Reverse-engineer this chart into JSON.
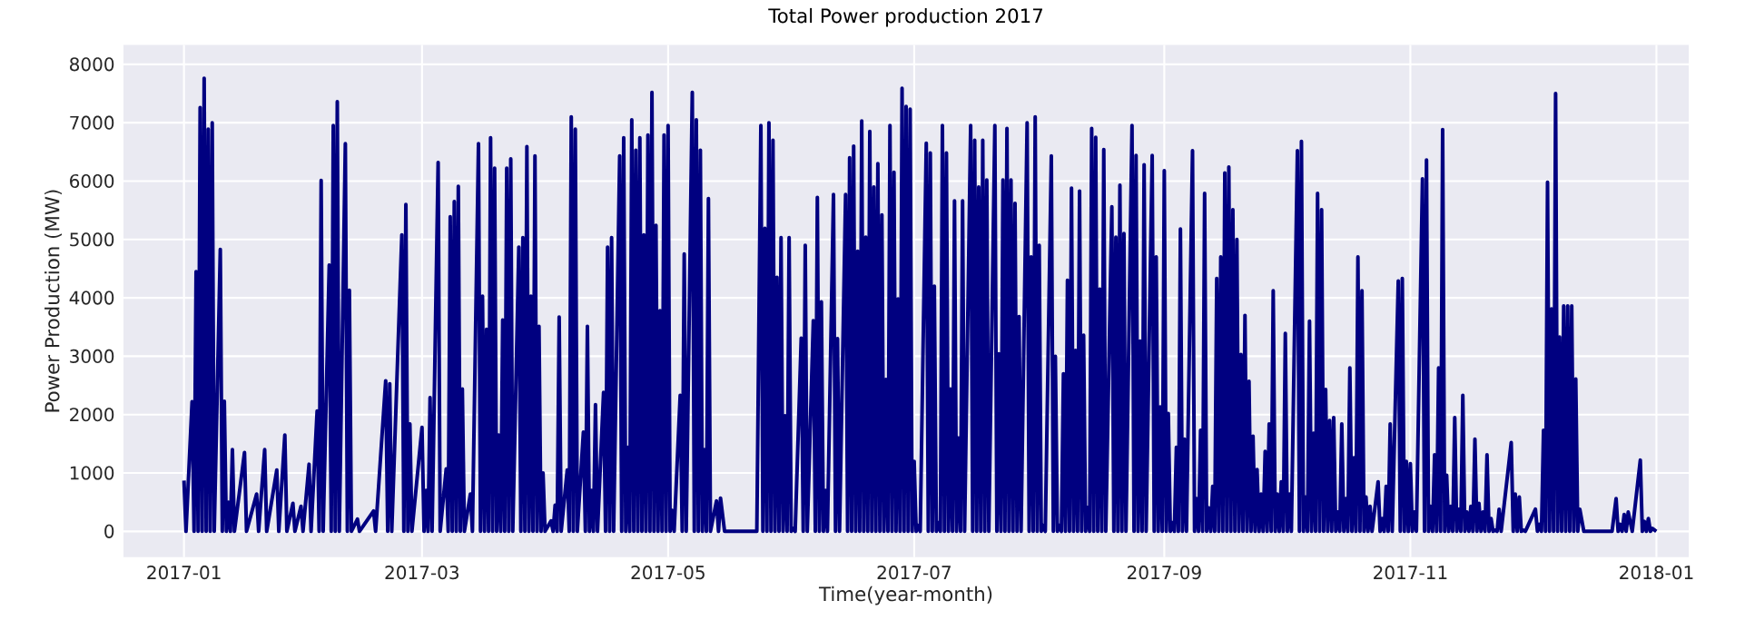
{
  "chart_data": {
    "type": "line",
    "title": "Total Power production 2017",
    "xlabel": "Time(year-month)",
    "ylabel": "Power Production (MW)",
    "grid": true,
    "xlim": [
      "2016-12-17",
      "2018-01-09"
    ],
    "ylim": [
      -440,
      8330
    ],
    "xticks": [
      {
        "value": "2017-01",
        "label": "2017-01"
      },
      {
        "value": "2017-03",
        "label": "2017-03"
      },
      {
        "value": "2017-05",
        "label": "2017-05"
      },
      {
        "value": "2017-07",
        "label": "2017-07"
      },
      {
        "value": "2017-09",
        "label": "2017-09"
      },
      {
        "value": "2017-11",
        "label": "2017-11"
      },
      {
        "value": "2018-01",
        "label": "2018-01"
      }
    ],
    "yticks": [
      0,
      1000,
      2000,
      3000,
      4000,
      5000,
      6000,
      7000,
      8000
    ],
    "series": [
      {
        "color": "#000080",
        "x": [
          "2017-01-01",
          "2017-01-01T12:00",
          "2017-01-03",
          "2017-01-03T12:00",
          "2017-01-04",
          "2017-01-04T12:00",
          "2017-01-05",
          "2017-01-05T12:00",
          "2017-01-06",
          "2017-01-06T12:00",
          "2017-01-07",
          "2017-01-07T12:00",
          "2017-01-08",
          "2017-01-08T12:00",
          "2017-01-10",
          "2017-01-10T12:00",
          "2017-01-11",
          "2017-01-11T12:00",
          "2017-01-12",
          "2017-01-12T12:00",
          "2017-01-13",
          "2017-01-13T12:00",
          "2017-01-16",
          "2017-01-16T12:00",
          "2017-01-19",
          "2017-01-19T12:00",
          "2017-01-21",
          "2017-01-21T12:00",
          "2017-01-24",
          "2017-01-24T12:00",
          "2017-01-26",
          "2017-01-26T12:00",
          "2017-01-28",
          "2017-01-28T12:00",
          "2017-01-30",
          "2017-01-30T12:00",
          "2017-02-01",
          "2017-02-01T12:00",
          "2017-02-03",
          "2017-02-03T12:00",
          "2017-02-04",
          "2017-02-04T12:00",
          "2017-02-06",
          "2017-02-06T12:00",
          "2017-02-07",
          "2017-02-07T12:00",
          "2017-02-08",
          "2017-02-08T12:00",
          "2017-02-10",
          "2017-02-10T12:00",
          "2017-02-11",
          "2017-02-11T12:00",
          "2017-02-13",
          "2017-02-13T12:00",
          "2017-02-17",
          "2017-02-17T12:00",
          "2017-02-20",
          "2017-02-20T12:00",
          "2017-02-21",
          "2017-02-21T12:00",
          "2017-02-24",
          "2017-02-24T12:00",
          "2017-02-25",
          "2017-02-25T12:00",
          "2017-02-26",
          "2017-02-26T12:00",
          "2017-03-01",
          "2017-03-01T12:00",
          "2017-03-02",
          "2017-03-02T12:00",
          "2017-03-03",
          "2017-03-03T12:00",
          "2017-03-05",
          "2017-03-05T12:00",
          "2017-03-07",
          "2017-03-07T12:00",
          "2017-03-08",
          "2017-03-08T12:00",
          "2017-03-09",
          "2017-03-09T12:00",
          "2017-03-10",
          "2017-03-10T12:00",
          "2017-03-11",
          "2017-03-11T12:00",
          "2017-03-13",
          "2017-03-13T12:00",
          "2017-03-15",
          "2017-03-15T12:00",
          "2017-03-16",
          "2017-03-16T12:00",
          "2017-03-17",
          "2017-03-17T12:00",
          "2017-03-18",
          "2017-03-18T12:00",
          "2017-03-19",
          "2017-03-19T12:00",
          "2017-03-20",
          "2017-03-20T12:00",
          "2017-03-21",
          "2017-03-21T12:00",
          "2017-03-22",
          "2017-03-22T12:00",
          "2017-03-23",
          "2017-03-23T12:00",
          "2017-03-25",
          "2017-03-25T12:00",
          "2017-03-26",
          "2017-03-26T12:00",
          "2017-03-27",
          "2017-03-27T12:00",
          "2017-03-28",
          "2017-03-28T12:00",
          "2017-03-29",
          "2017-03-29T12:00",
          "2017-03-30",
          "2017-03-30T12:00",
          "2017-03-31",
          "2017-03-31T12:00",
          "2017-04-02",
          "2017-04-02T12:00",
          "2017-04-03",
          "2017-04-03T12:00",
          "2017-04-04",
          "2017-04-04T12:00",
          "2017-04-06",
          "2017-04-06T12:00",
          "2017-04-07",
          "2017-04-07T12:00",
          "2017-04-08",
          "2017-04-08T12:00",
          "2017-04-10",
          "2017-04-10T12:00",
          "2017-04-11",
          "2017-04-11T12:00",
          "2017-04-12",
          "2017-04-12T12:00",
          "2017-04-13",
          "2017-04-13T12:00",
          "2017-04-15",
          "2017-04-15T12:00",
          "2017-04-16",
          "2017-04-16T12:00",
          "2017-04-17",
          "2017-04-17T12:00",
          "2017-04-19",
          "2017-04-19T12:00",
          "2017-04-20",
          "2017-04-20T12:00",
          "2017-04-21",
          "2017-04-21T12:00",
          "2017-04-22",
          "2017-04-22T12:00",
          "2017-04-23",
          "2017-04-23T12:00",
          "2017-04-24",
          "2017-04-24T12:00",
          "2017-04-25",
          "2017-04-25T12:00",
          "2017-04-26",
          "2017-04-26T12:00",
          "2017-04-27",
          "2017-04-27T12:00",
          "2017-04-28",
          "2017-04-28T12:00",
          "2017-04-29",
          "2017-04-29T12:00",
          "2017-04-30",
          "2017-04-30T12:00",
          "2017-05-01",
          "2017-05-01T12:00",
          "2017-05-02",
          "2017-05-02T12:00",
          "2017-05-04",
          "2017-05-04T12:00",
          "2017-05-05",
          "2017-05-05T12:00",
          "2017-05-07",
          "2017-05-07T12:00",
          "2017-05-08",
          "2017-05-08T12:00",
          "2017-05-09",
          "2017-05-09T12:00",
          "2017-05-10",
          "2017-05-10T12:00",
          "2017-05-11",
          "2017-05-11T12:00",
          "2017-05-13",
          "2017-05-13T12:00",
          "2017-05-14",
          "2017-05-15",
          "2017-05-23",
          "2017-05-24",
          "2017-05-24T12:00",
          "2017-05-25",
          "2017-05-25T12:00",
          "2017-05-26",
          "2017-05-26T12:00",
          "2017-05-27",
          "2017-05-27T12:00",
          "2017-05-28",
          "2017-05-28T12:00",
          "2017-05-29",
          "2017-05-29T12:00",
          "2017-05-30",
          "2017-05-30T12:00",
          "2017-05-31",
          "2017-05-31T12:00",
          "2017-06-01",
          "2017-06-01T12:00",
          "2017-06-03",
          "2017-06-03T12:00",
          "2017-06-04",
          "2017-06-04T12:00",
          "2017-06-06",
          "2017-06-06T12:00",
          "2017-06-07",
          "2017-06-07T12:00",
          "2017-06-08",
          "2017-06-08T12:00",
          "2017-06-09",
          "2017-06-09T12:00",
          "2017-06-11",
          "2017-06-11T12:00",
          "2017-06-12",
          "2017-06-12T12:00",
          "2017-06-14",
          "2017-06-14T12:00",
          "2017-06-15",
          "2017-06-15T12:00",
          "2017-06-16",
          "2017-06-16T12:00",
          "2017-06-17",
          "2017-06-17T12:00",
          "2017-06-18",
          "2017-06-18T12:00",
          "2017-06-19",
          "2017-06-19T12:00",
          "2017-06-20",
          "2017-06-20T12:00",
          "2017-06-21",
          "2017-06-21T12:00",
          "2017-06-22",
          "2017-06-22T12:00",
          "2017-06-23",
          "2017-06-23T12:00",
          "2017-06-24",
          "2017-06-24T12:00",
          "2017-06-25",
          "2017-06-25T12:00",
          "2017-06-26",
          "2017-06-26T12:00",
          "2017-06-27",
          "2017-06-27T12:00",
          "2017-06-28",
          "2017-06-28T12:00",
          "2017-06-29",
          "2017-06-29T12:00",
          "2017-06-30",
          "2017-06-30T12:00",
          "2017-07-01",
          "2017-07-01T12:00",
          "2017-07-02",
          "2017-07-02T12:00",
          "2017-07-04",
          "2017-07-04T12:00",
          "2017-07-05",
          "2017-07-05T12:00",
          "2017-07-06",
          "2017-07-06T12:00",
          "2017-07-07",
          "2017-07-07T12:00",
          "2017-07-08",
          "2017-07-08T12:00",
          "2017-07-09",
          "2017-07-09T12:00",
          "2017-07-10",
          "2017-07-10T12:00",
          "2017-07-11",
          "2017-07-11T12:00",
          "2017-07-12",
          "2017-07-12T12:00",
          "2017-07-13",
          "2017-07-13T12:00",
          "2017-07-15",
          "2017-07-15T12:00",
          "2017-07-16",
          "2017-07-16T12:00",
          "2017-07-17",
          "2017-07-17T12:00",
          "2017-07-18",
          "2017-07-18T12:00",
          "2017-07-19",
          "2017-07-19T12:00",
          "2017-07-21",
          "2017-07-21T12:00",
          "2017-07-22",
          "2017-07-22T12:00",
          "2017-07-23",
          "2017-07-23T12:00",
          "2017-07-24",
          "2017-07-24T12:00",
          "2017-07-25",
          "2017-07-25T12:00",
          "2017-07-26",
          "2017-07-26T12:00",
          "2017-07-27",
          "2017-07-27T12:00",
          "2017-07-29",
          "2017-07-29T12:00",
          "2017-07-30",
          "2017-07-30T12:00",
          "2017-07-31",
          "2017-07-31T12:00",
          "2017-08-01",
          "2017-08-01T12:00",
          "2017-08-02",
          "2017-08-02T12:00",
          "2017-08-04",
          "2017-08-04T12:00",
          "2017-08-05",
          "2017-08-05T12:00",
          "2017-08-06",
          "2017-08-06T12:00",
          "2017-08-07",
          "2017-08-07T12:00",
          "2017-08-08",
          "2017-08-08T12:00",
          "2017-08-09",
          "2017-08-09T12:00",
          "2017-08-10",
          "2017-08-10T12:00",
          "2017-08-11",
          "2017-08-11T12:00",
          "2017-08-12",
          "2017-08-12T12:00",
          "2017-08-13",
          "2017-08-13T12:00",
          "2017-08-14",
          "2017-08-14T12:00",
          "2017-08-15",
          "2017-08-15T12:00",
          "2017-08-16",
          "2017-08-16T12:00",
          "2017-08-17",
          "2017-08-17T12:00",
          "2017-08-19",
          "2017-08-19T12:00",
          "2017-08-20",
          "2017-08-20T12:00",
          "2017-08-21",
          "2017-08-21T12:00",
          "2017-08-22",
          "2017-08-22T12:00",
          "2017-08-24",
          "2017-08-24T12:00",
          "2017-08-25",
          "2017-08-25T12:00",
          "2017-08-26",
          "2017-08-26T12:00",
          "2017-08-27",
          "2017-08-27T12:00",
          "2017-08-29",
          "2017-08-29T12:00",
          "2017-08-30",
          "2017-08-30T12:00",
          "2017-08-31",
          "2017-08-31T12:00",
          "2017-09-01",
          "2017-09-01T12:00",
          "2017-09-02",
          "2017-09-02T12:00",
          "2017-09-03",
          "2017-09-03T12:00",
          "2017-09-04",
          "2017-09-04T12:00",
          "2017-09-05",
          "2017-09-05T12:00",
          "2017-09-06",
          "2017-09-06T12:00",
          "2017-09-08",
          "2017-09-08T12:00",
          "2017-09-09",
          "2017-09-09T12:00",
          "2017-09-10",
          "2017-09-10T12:00",
          "2017-09-11",
          "2017-09-11T12:00",
          "2017-09-12",
          "2017-09-12T12:00",
          "2017-09-13",
          "2017-09-13T12:00",
          "2017-09-14",
          "2017-09-14T12:00",
          "2017-09-15",
          "2017-09-15T12:00",
          "2017-09-16",
          "2017-09-16T12:00",
          "2017-09-17",
          "2017-09-17T12:00",
          "2017-09-18",
          "2017-09-18T12:00",
          "2017-09-19",
          "2017-09-19T12:00",
          "2017-09-20",
          "2017-09-20T12:00",
          "2017-09-21",
          "2017-09-21T12:00",
          "2017-09-22",
          "2017-09-22T12:00",
          "2017-09-23",
          "2017-09-23T12:00",
          "2017-09-24",
          "2017-09-24T12:00",
          "2017-09-25",
          "2017-09-25T12:00",
          "2017-09-26",
          "2017-09-26T12:00",
          "2017-09-27",
          "2017-09-27T12:00",
          "2017-09-28",
          "2017-09-28T12:00",
          "2017-09-29",
          "2017-09-29T12:00",
          "2017-09-30",
          "2017-09-30T12:00",
          "2017-10-01",
          "2017-10-01T12:00",
          "2017-10-02",
          "2017-10-02T12:00",
          "2017-10-04",
          "2017-10-04T12:00",
          "2017-10-05",
          "2017-10-05T12:00",
          "2017-10-06",
          "2017-10-06T12:00",
          "2017-10-07",
          "2017-10-07T12:00",
          "2017-10-08",
          "2017-10-08T12:00",
          "2017-10-09",
          "2017-10-09T12:00",
          "2017-10-10",
          "2017-10-10T12:00",
          "2017-10-11",
          "2017-10-11T12:00",
          "2017-10-12",
          "2017-10-12T12:00",
          "2017-10-13",
          "2017-10-13T12:00",
          "2017-10-14",
          "2017-10-14T12:00",
          "2017-10-15",
          "2017-10-15T12:00",
          "2017-10-16",
          "2017-10-16T12:00",
          "2017-10-17",
          "2017-10-17T12:00",
          "2017-10-18",
          "2017-10-18T12:00",
          "2017-10-19",
          "2017-10-19T12:00",
          "2017-10-20",
          "2017-10-20T12:00",
          "2017-10-21",
          "2017-10-21T12:00",
          "2017-10-22",
          "2017-10-22T12:00",
          "2017-10-24",
          "2017-10-24T12:00",
          "2017-10-25",
          "2017-10-25T12:00",
          "2017-10-26",
          "2017-10-26T12:00",
          "2017-10-27",
          "2017-10-27T12:00",
          "2017-10-29",
          "2017-10-29T12:00",
          "2017-10-30",
          "2017-10-30T12:00",
          "2017-10-31",
          "2017-10-31T12:00",
          "2017-11-01",
          "2017-11-01T12:00",
          "2017-11-02",
          "2017-11-02T12:00",
          "2017-11-04",
          "2017-11-04T12:00",
          "2017-11-05",
          "2017-11-05T12:00",
          "2017-11-06",
          "2017-11-06T12:00",
          "2017-11-07",
          "2017-11-07T12:00",
          "2017-11-08",
          "2017-11-08T12:00",
          "2017-11-09",
          "2017-11-09T12:00",
          "2017-11-10",
          "2017-11-10T12:00",
          "2017-11-11",
          "2017-11-11T12:00",
          "2017-11-12",
          "2017-11-12T12:00",
          "2017-11-13",
          "2017-11-13T12:00",
          "2017-11-14",
          "2017-11-14T12:00",
          "2017-11-15",
          "2017-11-15T12:00",
          "2017-11-16",
          "2017-11-16T12:00",
          "2017-11-17",
          "2017-11-17T12:00",
          "2017-11-18",
          "2017-11-18T12:00",
          "2017-11-19",
          "2017-11-19T12:00",
          "2017-11-20",
          "2017-11-20T12:00",
          "2017-11-21",
          "2017-11-21T12:00",
          "2017-11-22",
          "2017-11-22T12:00",
          "2017-11-23",
          "2017-11-23T12:00",
          "2017-11-26",
          "2017-11-26T12:00",
          "2017-11-27",
          "2017-11-27T12:00",
          "2017-11-28",
          "2017-11-28T12:00",
          "2017-11-29",
          "2017-11-29T12:00",
          "2017-12-02",
          "2017-12-02T12:00",
          "2017-12-03",
          "2017-12-03T12:00",
          "2017-12-04",
          "2017-12-04T12:00",
          "2017-12-05",
          "2017-12-05T12:00",
          "2017-12-06",
          "2017-12-06T12:00",
          "2017-12-07",
          "2017-12-07T12:00",
          "2017-12-08",
          "2017-12-08T12:00",
          "2017-12-09",
          "2017-12-09T12:00",
          "2017-12-10",
          "2017-12-10T12:00",
          "2017-12-11",
          "2017-12-11T12:00",
          "2017-12-12",
          "2017-12-12T12:00",
          "2017-12-13",
          "2017-12-14",
          "2017-12-21",
          "2017-12-22",
          "2017-12-22T12:00",
          "2017-12-23",
          "2017-12-23T12:00",
          "2017-12-24",
          "2017-12-24T12:00",
          "2017-12-25",
          "2017-12-26",
          "2017-12-28",
          "2017-12-28T12:00",
          "2017-12-29",
          "2017-12-29T12:00",
          "2017-12-30",
          "2017-12-30T12:00",
          "2017-12-31",
          "2017-12-31T23:00"
        ],
        "values": [
          870,
          0,
          2220,
          0,
          4450,
          0,
          7260,
          0,
          7760,
          0,
          6890,
          0,
          7000,
          0,
          4830,
          0,
          2230,
          0,
          500,
          0,
          1400,
          0,
          1350,
          0,
          640,
          0,
          1400,
          0,
          1050,
          0,
          1650,
          0,
          480,
          0,
          430,
          0,
          1150,
          0,
          2060,
          0,
          6010,
          0,
          4560,
          0,
          6950,
          0,
          7360,
          0,
          6640,
          0,
          4130,
          0,
          210,
          0,
          350,
          0,
          2580,
          0,
          2530,
          0,
          5080,
          0,
          5600,
          0,
          1840,
          0,
          1780,
          0,
          700,
          0,
          2290,
          0,
          6320,
          0,
          1070,
          0,
          5390,
          0,
          5650,
          0,
          5910,
          0,
          2440,
          0,
          640,
          0,
          6640,
          0,
          4030,
          0,
          3460,
          0,
          6740,
          0,
          6220,
          0,
          1650,
          0,
          3620,
          0,
          6220,
          0,
          6380,
          0,
          4870,
          0,
          5030,
          0,
          6590,
          0,
          4030,
          0,
          6430,
          0,
          3510,
          0,
          1000,
          0,
          180,
          0,
          450,
          0,
          3670,
          0,
          1050,
          0,
          7100,
          0,
          6890,
          0,
          1700,
          0,
          3510,
          0,
          700,
          0,
          2170,
          0,
          2380,
          0,
          4870,
          0,
          5030,
          0,
          6430,
          0,
          6740,
          0,
          1440,
          0,
          7050,
          0,
          6530,
          0,
          6740,
          0,
          5080,
          0,
          6790,
          0,
          7520,
          0,
          5240,
          0,
          3780,
          0,
          6790,
          0,
          6950,
          0,
          360,
          0,
          2330,
          0,
          4750,
          0,
          7520,
          0,
          7050,
          0,
          6530,
          0,
          1400,
          0,
          5700,
          0,
          520,
          0,
          570,
          0,
          0,
          6950,
          0,
          5190,
          0,
          7000,
          0,
          6700,
          0,
          4350,
          0,
          5030,
          0,
          1980,
          0,
          5030,
          0,
          50,
          0,
          3310,
          0,
          4900,
          0,
          3610,
          0,
          5720,
          0,
          3930,
          0,
          700,
          0,
          5770,
          0,
          3300,
          0,
          5770,
          0,
          6400,
          0,
          6600,
          0,
          4800,
          0,
          7030,
          0,
          5040,
          0,
          6850,
          0,
          5900,
          0,
          6300,
          0,
          5420,
          0,
          2600,
          0,
          6950,
          0,
          6150,
          0,
          3980,
          0,
          7590,
          0,
          7280,
          0,
          7230,
          0,
          1200,
          0,
          100,
          0,
          6650,
          0,
          6480,
          0,
          4200,
          0,
          150,
          0,
          6950,
          0,
          6480,
          0,
          2440,
          0,
          5660,
          0,
          1600,
          0,
          5660,
          0,
          6950,
          0,
          6700,
          0,
          5900,
          0,
          6700,
          0,
          6020,
          0,
          6950,
          0,
          3040,
          0,
          6020,
          0,
          6900,
          0,
          6020,
          0,
          5620,
          0,
          3680,
          0,
          7000,
          0,
          4700,
          0,
          7100,
          0,
          4900,
          0,
          100,
          0,
          6430,
          0,
          3000,
          0,
          100,
          0,
          2700,
          0,
          4300,
          0,
          5880,
          0,
          3100,
          0,
          5830,
          0,
          3360,
          0,
          410,
          0,
          6900,
          0,
          6750,
          0,
          4150,
          0,
          6540,
          0,
          5560,
          0,
          5040,
          0,
          5930,
          0,
          5100,
          0,
          6950,
          0,
          6440,
          0,
          3260,
          0,
          6280,
          0,
          6440,
          0,
          4700,
          0,
          2130,
          0,
          6180,
          0,
          2020,
          0,
          150,
          0,
          1440,
          0,
          5180,
          0,
          1580,
          0,
          6520,
          0,
          560,
          0,
          1730,
          0,
          5790,
          0,
          400,
          0,
          770,
          0,
          4330,
          0,
          4700,
          0,
          6140,
          0,
          6240,
          0,
          5510,
          0,
          5000,
          0,
          3030,
          0,
          3700,
          0,
          2570,
          0,
          1630,
          0,
          1060,
          0,
          640,
          0,
          1370,
          0,
          1840,
          0,
          4120,
          0,
          640,
          0,
          850,
          0,
          3390,
          0,
          640,
          0,
          6520,
          0,
          6680,
          0,
          590,
          0,
          3600,
          0,
          1680,
          0,
          5790,
          0,
          5510,
          0,
          2430,
          0,
          1900,
          0,
          1950,
          0,
          330,
          0,
          1840,
          0,
          560,
          0,
          2800,
          0,
          1260,
          0,
          4700,
          0,
          4120,
          0,
          590,
          0,
          430,
          0,
          850,
          0,
          220,
          0,
          770,
          0,
          1840,
          0,
          4290,
          0,
          4330,
          0,
          1200,
          0,
          1160,
          0,
          330,
          0,
          6040,
          0,
          6360,
          0,
          430,
          0,
          1310,
          0,
          2800,
          0,
          6880,
          0,
          960,
          0,
          430,
          0,
          1950,
          0,
          380,
          0,
          2330,
          0,
          330,
          0,
          430,
          0,
          1580,
          0,
          480,
          0,
          330,
          0,
          1310,
          0,
          220,
          0,
          20,
          0,
          380,
          0,
          1520,
          0,
          640,
          0,
          590,
          0,
          20,
          0,
          380,
          0,
          120,
          0,
          1730,
          0,
          5980,
          0,
          3810,
          0,
          7500,
          0,
          3330,
          0,
          3860,
          0,
          3860,
          0,
          3860,
          0,
          2610,
          0,
          380,
          0,
          0,
          560,
          0,
          120,
          0,
          290,
          0,
          330,
          0,
          1220,
          0,
          170,
          0,
          220,
          0,
          50,
          0
        ]
      }
    ]
  }
}
